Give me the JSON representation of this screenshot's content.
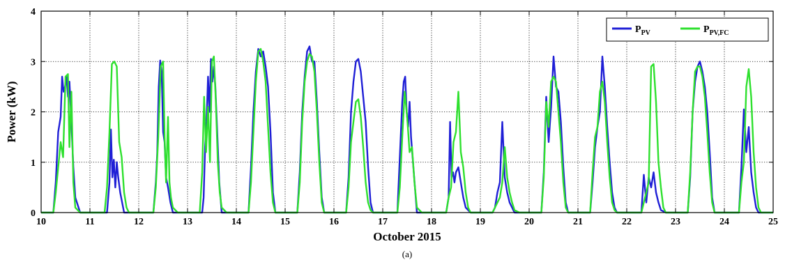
{
  "chart_data": {
    "type": "line",
    "xlabel": "October 2015",
    "ylabel": "Power (kW)",
    "caption": "(a)",
    "xlim": [
      10,
      25
    ],
    "ylim": [
      0,
      4
    ],
    "x_ticks": [
      10,
      11,
      12,
      13,
      14,
      15,
      16,
      17,
      18,
      19,
      20,
      21,
      22,
      23,
      24,
      25
    ],
    "y_ticks": [
      0,
      1,
      2,
      3,
      4
    ],
    "grid": true,
    "legend_position": "top-right",
    "x_unit": "day of October 2015",
    "series": [
      {
        "name": "P_PV",
        "legend_main": "P",
        "legend_sub": "PV",
        "color": "#1f1fd6",
        "x": [
          10.0,
          10.25,
          10.3,
          10.35,
          10.4,
          10.43,
          10.46,
          10.49,
          10.52,
          10.55,
          10.58,
          10.62,
          10.66,
          10.7,
          10.8,
          11.0,
          11.35,
          11.4,
          11.43,
          11.46,
          11.49,
          11.52,
          11.55,
          11.58,
          11.62,
          11.66,
          11.7,
          11.8,
          12.0,
          12.3,
          12.35,
          12.38,
          12.41,
          12.44,
          12.47,
          12.5,
          12.53,
          12.56,
          12.6,
          12.65,
          12.7,
          12.8,
          13.0,
          13.3,
          13.33,
          13.36,
          13.39,
          13.42,
          13.45,
          13.48,
          13.51,
          13.54,
          13.57,
          13.6,
          13.65,
          13.7,
          13.8,
          14.0,
          14.25,
          14.3,
          14.35,
          14.4,
          14.45,
          14.5,
          14.55,
          14.6,
          14.65,
          14.7,
          14.75,
          14.8,
          15.0,
          15.25,
          15.3,
          15.35,
          15.4,
          15.45,
          15.5,
          15.55,
          15.6,
          15.65,
          15.7,
          15.75,
          15.8,
          16.0,
          16.25,
          16.3,
          16.35,
          16.4,
          16.45,
          16.5,
          16.55,
          16.6,
          16.65,
          16.7,
          16.75,
          16.8,
          17.0,
          17.3,
          17.35,
          17.4,
          17.43,
          17.46,
          17.49,
          17.52,
          17.55,
          17.58,
          17.62,
          17.66,
          17.7,
          17.8,
          18.0,
          18.3,
          18.35,
          18.38,
          18.41,
          18.44,
          18.47,
          18.5,
          18.55,
          18.6,
          18.65,
          18.7,
          18.8,
          19.0,
          19.25,
          19.3,
          19.35,
          19.4,
          19.45,
          19.5,
          19.55,
          19.6,
          19.65,
          19.7,
          19.8,
          20.0,
          20.25,
          20.3,
          20.35,
          20.4,
          20.45,
          20.5,
          20.55,
          20.6,
          20.65,
          20.7,
          20.75,
          20.8,
          21.0,
          21.25,
          21.3,
          21.35,
          21.4,
          21.45,
          21.5,
          21.55,
          21.6,
          21.65,
          21.7,
          21.75,
          21.8,
          22.0,
          22.3,
          22.35,
          22.4,
          22.45,
          22.5,
          22.55,
          22.6,
          22.65,
          22.7,
          22.8,
          23.0,
          23.25,
          23.3,
          23.35,
          23.4,
          23.45,
          23.5,
          23.55,
          23.6,
          23.65,
          23.7,
          23.75,
          23.8,
          24.0,
          24.3,
          24.35,
          24.4,
          24.45,
          24.5,
          24.55,
          24.6,
          24.65,
          24.7,
          24.8,
          25.0
        ],
        "y": [
          0.0,
          0.0,
          0.6,
          1.6,
          1.9,
          2.7,
          2.4,
          2.5,
          2.7,
          2.3,
          2.6,
          1.8,
          0.9,
          0.3,
          0.0,
          0.0,
          0.0,
          0.6,
          1.65,
          0.7,
          1.05,
          0.5,
          1.0,
          0.7,
          0.4,
          0.2,
          0.0,
          0.0,
          0.0,
          0.0,
          0.6,
          1.2,
          2.5,
          3.02,
          2.8,
          1.6,
          1.4,
          0.7,
          0.5,
          0.2,
          0.0,
          0.0,
          0.0,
          0.0,
          0.3,
          1.3,
          1.8,
          2.7,
          2.0,
          3.05,
          2.6,
          2.9,
          2.5,
          1.8,
          0.6,
          0.0,
          0.0,
          0.0,
          0.0,
          0.9,
          2.0,
          2.8,
          3.25,
          3.1,
          3.2,
          2.9,
          2.5,
          1.6,
          0.4,
          0.0,
          0.0,
          0.0,
          0.8,
          2.0,
          2.7,
          3.2,
          3.3,
          3.0,
          3.0,
          2.2,
          1.2,
          0.3,
          0.0,
          0.0,
          0.0,
          0.7,
          2.0,
          2.6,
          3.0,
          3.05,
          2.8,
          2.3,
          1.8,
          0.9,
          0.2,
          0.0,
          0.0,
          0.0,
          1.1,
          2.2,
          2.6,
          2.7,
          2.0,
          1.7,
          2.2,
          1.5,
          1.0,
          0.5,
          0.0,
          0.0,
          0.0,
          0.0,
          0.3,
          1.8,
          0.7,
          0.8,
          0.6,
          0.8,
          0.9,
          0.6,
          0.3,
          0.1,
          0.0,
          0.0,
          0.0,
          0.1,
          0.4,
          0.6,
          1.8,
          0.7,
          0.4,
          0.2,
          0.1,
          0.0,
          0.0,
          0.0,
          0.0,
          0.8,
          2.3,
          1.4,
          2.1,
          3.1,
          2.5,
          2.4,
          1.8,
          0.9,
          0.2,
          0.0,
          0.0,
          0.0,
          0.6,
          1.3,
          1.7,
          2.0,
          3.1,
          2.5,
          1.7,
          1.0,
          0.4,
          0.1,
          0.0,
          0.0,
          0.0,
          0.75,
          0.2,
          0.7,
          0.5,
          0.8,
          0.4,
          0.2,
          0.05,
          0.0,
          0.0,
          0.0,
          0.7,
          2.0,
          2.6,
          2.9,
          3.0,
          2.8,
          2.5,
          2.0,
          1.2,
          0.3,
          0.0,
          0.0,
          0.0,
          0.9,
          2.05,
          1.2,
          1.7,
          0.8,
          0.4,
          0.1,
          0.0,
          0.0,
          0.0
        ]
      },
      {
        "name": "P_PV,FC",
        "legend_main": "P",
        "legend_sub": "PV,FC",
        "color": "#2ee02e",
        "x": [
          10.0,
          10.25,
          10.3,
          10.35,
          10.4,
          10.45,
          10.5,
          10.55,
          10.58,
          10.62,
          10.66,
          10.7,
          10.8,
          11.0,
          11.3,
          11.35,
          11.4,
          11.45,
          11.5,
          11.55,
          11.6,
          11.65,
          11.7,
          11.75,
          11.8,
          12.0,
          12.3,
          12.35,
          12.4,
          12.45,
          12.5,
          12.53,
          12.56,
          12.6,
          12.63,
          12.66,
          12.7,
          12.8,
          13.0,
          13.25,
          13.3,
          13.34,
          13.38,
          13.42,
          13.46,
          13.5,
          13.54,
          13.58,
          13.62,
          13.66,
          13.7,
          13.8,
          14.0,
          14.25,
          14.3,
          14.35,
          14.4,
          14.45,
          14.5,
          14.55,
          14.6,
          14.65,
          14.7,
          14.75,
          14.8,
          15.0,
          15.25,
          15.3,
          15.35,
          15.4,
          15.45,
          15.5,
          15.55,
          15.6,
          15.65,
          15.7,
          15.75,
          15.8,
          16.0,
          16.25,
          16.3,
          16.35,
          16.4,
          16.45,
          16.5,
          16.55,
          16.6,
          16.65,
          16.7,
          16.75,
          16.8,
          17.0,
          17.3,
          17.35,
          17.4,
          17.45,
          17.5,
          17.55,
          17.6,
          17.65,
          17.7,
          17.8,
          18.0,
          18.3,
          18.35,
          18.4,
          18.45,
          18.5,
          18.55,
          18.6,
          18.65,
          18.7,
          18.75,
          18.8,
          19.0,
          19.25,
          19.3,
          19.35,
          19.4,
          19.45,
          19.5,
          19.55,
          19.6,
          19.65,
          19.7,
          19.8,
          20.0,
          20.25,
          20.3,
          20.35,
          20.4,
          20.45,
          20.5,
          20.55,
          20.6,
          20.65,
          20.7,
          20.75,
          20.8,
          21.0,
          21.25,
          21.3,
          21.35,
          21.4,
          21.45,
          21.5,
          21.55,
          21.6,
          21.65,
          21.7,
          21.75,
          21.8,
          22.0,
          22.3,
          22.35,
          22.4,
          22.45,
          22.5,
          22.55,
          22.6,
          22.65,
          22.7,
          22.75,
          22.8,
          23.0,
          23.25,
          23.3,
          23.35,
          23.4,
          23.45,
          23.5,
          23.55,
          23.6,
          23.65,
          23.7,
          23.75,
          23.8,
          24.0,
          24.3,
          24.35,
          24.4,
          24.45,
          24.5,
          24.55,
          24.6,
          24.65,
          24.7,
          24.75,
          24.8,
          25.0
        ],
        "y": [
          0.0,
          0.0,
          0.4,
          0.9,
          1.4,
          1.1,
          2.7,
          2.75,
          1.3,
          2.4,
          0.6,
          0.1,
          0.0,
          0.0,
          0.0,
          0.5,
          1.6,
          2.95,
          3.0,
          2.9,
          1.4,
          1.1,
          0.4,
          0.1,
          0.0,
          0.0,
          0.0,
          0.5,
          1.5,
          2.9,
          3.0,
          1.5,
          0.6,
          1.9,
          0.6,
          0.3,
          0.1,
          0.0,
          0.0,
          0.0,
          0.8,
          2.3,
          1.2,
          2.1,
          1.0,
          3.0,
          3.1,
          2.2,
          1.0,
          0.4,
          0.1,
          0.0,
          0.0,
          0.0,
          0.6,
          1.6,
          2.6,
          3.2,
          3.25,
          3.0,
          2.6,
          1.7,
          0.8,
          0.2,
          0.0,
          0.0,
          0.0,
          0.6,
          1.8,
          2.6,
          3.0,
          3.15,
          3.1,
          2.8,
          2.0,
          1.0,
          0.2,
          0.0,
          0.0,
          0.0,
          0.5,
          1.4,
          1.8,
          2.2,
          2.25,
          1.9,
          1.3,
          0.6,
          0.2,
          0.05,
          0.0,
          0.0,
          0.0,
          0.5,
          1.5,
          2.4,
          1.9,
          1.2,
          1.3,
          0.6,
          0.1,
          0.0,
          0.0,
          0.0,
          0.3,
          0.5,
          1.4,
          1.6,
          2.4,
          1.2,
          0.9,
          0.4,
          0.1,
          0.0,
          0.0,
          0.0,
          0.1,
          0.2,
          0.3,
          0.6,
          1.3,
          0.7,
          0.4,
          0.2,
          0.05,
          0.0,
          0.0,
          0.0,
          0.7,
          2.2,
          1.7,
          2.6,
          2.7,
          2.6,
          2.0,
          1.4,
          0.6,
          0.1,
          0.0,
          0.0,
          0.0,
          0.8,
          1.5,
          1.7,
          2.4,
          2.6,
          2.2,
          1.4,
          0.7,
          0.2,
          0.05,
          0.0,
          0.0,
          0.0,
          0.2,
          0.4,
          0.6,
          2.9,
          2.95,
          2.2,
          1.0,
          0.5,
          0.1,
          0.0,
          0.0,
          0.0,
          0.8,
          2.0,
          2.8,
          2.9,
          2.9,
          2.7,
          2.3,
          1.6,
          0.8,
          0.2,
          0.0,
          0.0,
          0.0,
          0.6,
          1.0,
          2.5,
          2.85,
          2.3,
          1.2,
          0.5,
          0.1,
          0.0,
          0.0,
          0.0
        ]
      }
    ]
  }
}
